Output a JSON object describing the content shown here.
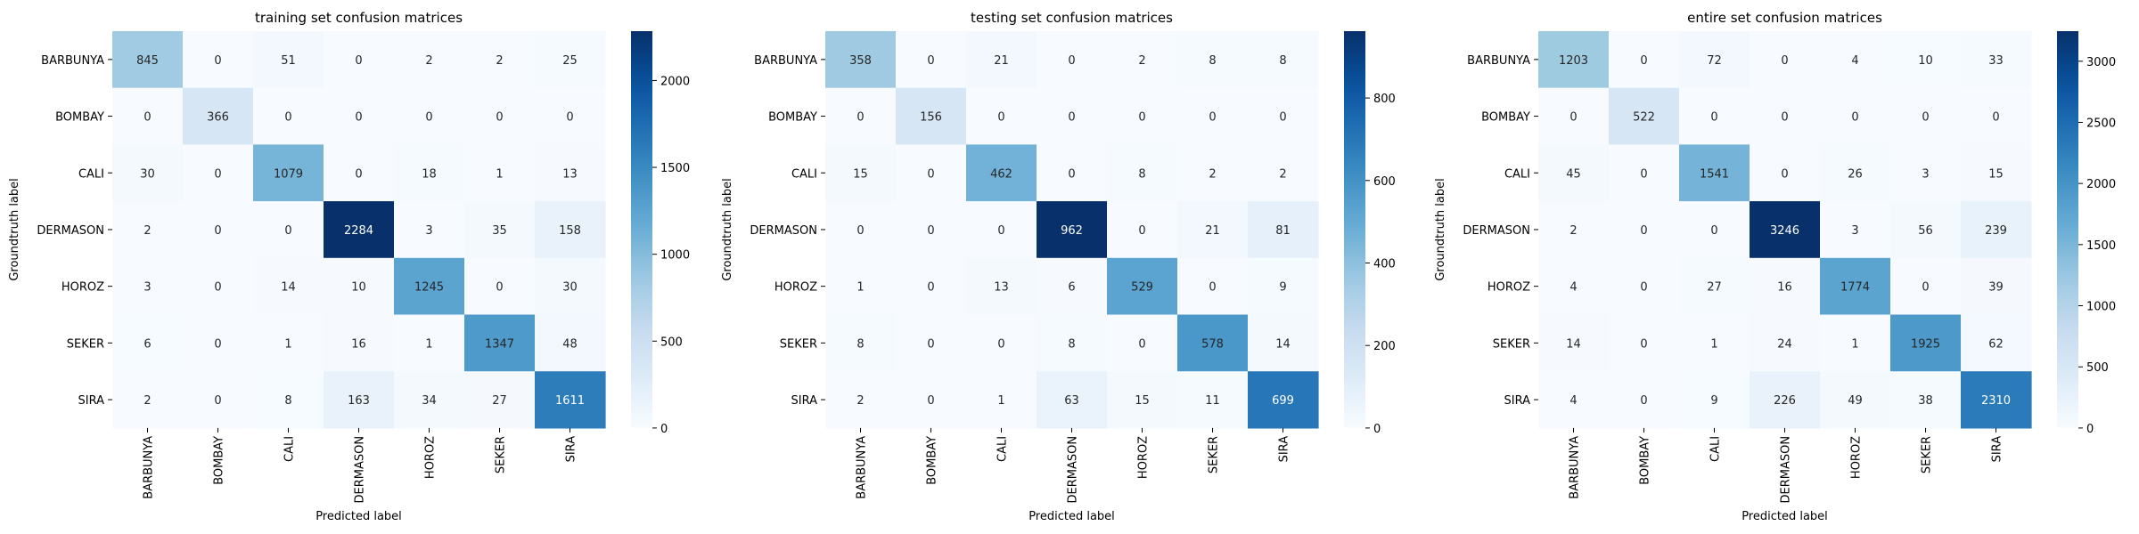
{
  "colorbar_ticks": [
    [
      0,
      500,
      1000,
      1500,
      2000
    ],
    [
      0,
      200,
      400,
      600,
      800
    ],
    [
      0,
      500,
      1000,
      1500,
      2000,
      2500,
      3000
    ]
  ],
  "chart_data": [
    {
      "type": "heatmap",
      "title": "training set confusion matrices",
      "xlabel": "Predicted label",
      "ylabel": "Groundtruth label",
      "x_categories": [
        "BARBUNYA",
        "BOMBAY",
        "CALI",
        "DERMASON",
        "HOROZ",
        "SEKER",
        "SIRA"
      ],
      "y_categories": [
        "BARBUNYA",
        "BOMBAY",
        "CALI",
        "DERMASON",
        "HOROZ",
        "SEKER",
        "SIRA"
      ],
      "values": [
        [
          845,
          0,
          51,
          0,
          2,
          2,
          25
        ],
        [
          0,
          366,
          0,
          0,
          0,
          0,
          0
        ],
        [
          30,
          0,
          1079,
          0,
          18,
          1,
          13
        ],
        [
          2,
          0,
          0,
          2284,
          3,
          35,
          158
        ],
        [
          3,
          0,
          14,
          10,
          1245,
          0,
          30
        ],
        [
          6,
          0,
          1,
          16,
          1,
          1347,
          48
        ],
        [
          2,
          0,
          8,
          163,
          34,
          27,
          1611
        ]
      ],
      "colormap": "Blues",
      "color_range": [
        0,
        2284
      ]
    },
    {
      "type": "heatmap",
      "title": "testing set confusion matrices",
      "xlabel": "Predicted label",
      "ylabel": "Groundtruth label",
      "x_categories": [
        "BARBUNYA",
        "BOMBAY",
        "CALI",
        "DERMASON",
        "HOROZ",
        "SEKER",
        "SIRA"
      ],
      "y_categories": [
        "BARBUNYA",
        "BOMBAY",
        "CALI",
        "DERMASON",
        "HOROZ",
        "SEKER",
        "SIRA"
      ],
      "values": [
        [
          358,
          0,
          21,
          0,
          2,
          8,
          8
        ],
        [
          0,
          156,
          0,
          0,
          0,
          0,
          0
        ],
        [
          15,
          0,
          462,
          0,
          8,
          2,
          2
        ],
        [
          0,
          0,
          0,
          962,
          0,
          21,
          81
        ],
        [
          1,
          0,
          13,
          6,
          529,
          0,
          9
        ],
        [
          8,
          0,
          0,
          8,
          0,
          578,
          14
        ],
        [
          2,
          0,
          1,
          63,
          15,
          11,
          699
        ]
      ],
      "colormap": "Blues",
      "color_range": [
        0,
        962
      ]
    },
    {
      "type": "heatmap",
      "title": "entire set confusion matrices",
      "xlabel": "Predicted label",
      "ylabel": "Groundtruth label",
      "x_categories": [
        "BARBUNYA",
        "BOMBAY",
        "CALI",
        "DERMASON",
        "HOROZ",
        "SEKER",
        "SIRA"
      ],
      "y_categories": [
        "BARBUNYA",
        "BOMBAY",
        "CALI",
        "DERMASON",
        "HOROZ",
        "SEKER",
        "SIRA"
      ],
      "values": [
        [
          1203,
          0,
          72,
          0,
          4,
          10,
          33
        ],
        [
          0,
          522,
          0,
          0,
          0,
          0,
          0
        ],
        [
          45,
          0,
          1541,
          0,
          26,
          3,
          15
        ],
        [
          2,
          0,
          0,
          3246,
          3,
          56,
          239
        ],
        [
          4,
          0,
          27,
          16,
          1774,
          0,
          39
        ],
        [
          14,
          0,
          1,
          24,
          1,
          1925,
          62
        ],
        [
          4,
          0,
          9,
          226,
          49,
          38,
          2310
        ]
      ],
      "colormap": "Blues",
      "color_range": [
        0,
        3246
      ]
    }
  ]
}
